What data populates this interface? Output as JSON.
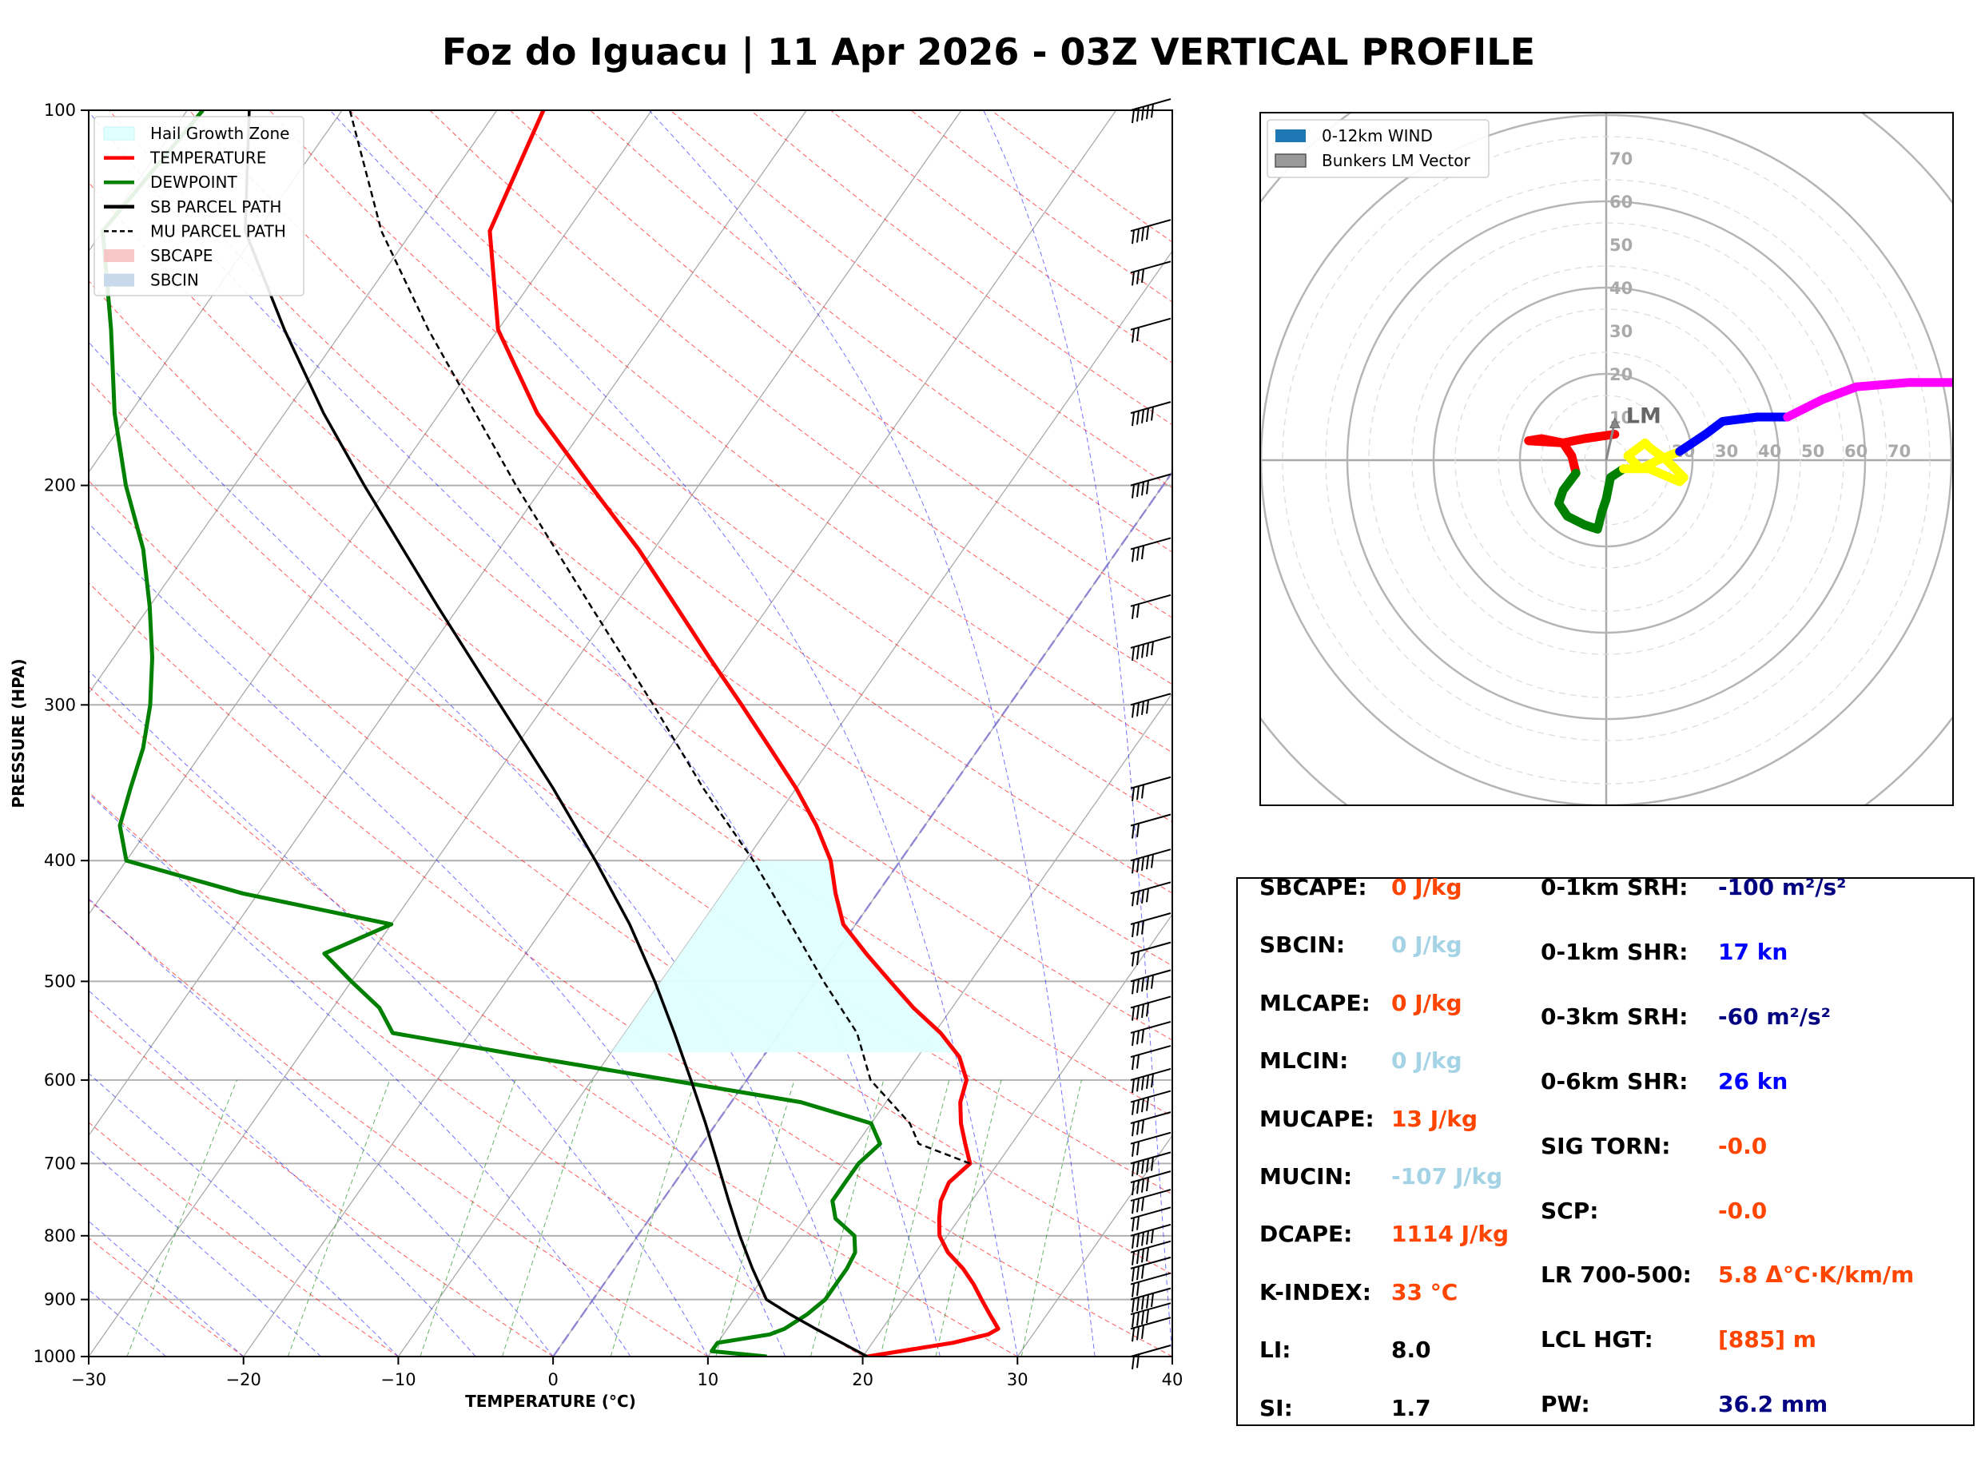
{
  "title": "Foz do Iguacu | 11 Apr 2026 - 03Z VERTICAL PROFILE",
  "colors": {
    "temperature": "#ff0000",
    "dewpoint": "#008000",
    "parcel": "#000000",
    "hail": "#e0ffff",
    "dry_adiabat": "#ff0000",
    "moist_adiabat": "#0000ff",
    "mixing_ratio": "#008000",
    "isotherm": "#000000",
    "value_orange": "#ff4500",
    "value_lightblue": "#a5d3e6",
    "value_navy": "#000080",
    "value_blue": "#0000ff",
    "value_black": "#000000"
  },
  "chart_data": [
    {
      "type": "line",
      "name": "skew-t",
      "xlabel": "TEMPERATURE (°C)",
      "ylabel": "PRESSURE (HPA)",
      "xlim": [
        -30,
        40
      ],
      "ylim": [
        1000,
        100
      ],
      "x_ticks": [
        -30,
        -20,
        -10,
        0,
        10,
        20,
        30,
        40
      ],
      "x_tick_labels": [
        "−30",
        "−20",
        "−10",
        "0",
        "10",
        "20",
        "30",
        "40"
      ],
      "y_ticks": [
        1000,
        900,
        800,
        700,
        600,
        500,
        400,
        300,
        200,
        100
      ],
      "y_tick_labels": [
        "1000",
        "900",
        "800",
        "700",
        "600",
        "500",
        "400",
        "300",
        "200",
        "100"
      ],
      "legend": [
        {
          "label": "Hail Growth Zone",
          "kind": "patch",
          "color": "#e0ffff"
        },
        {
          "label": "TEMPERATURE",
          "kind": "line",
          "color": "#ff0000"
        },
        {
          "label": "DEWPOINT",
          "kind": "line",
          "color": "#008000"
        },
        {
          "label": "SB PARCEL PATH",
          "kind": "line",
          "color": "#000000"
        },
        {
          "label": "MU PARCEL PATH",
          "kind": "dashed",
          "color": "#000000"
        },
        {
          "label": "SBCAPE",
          "kind": "patch",
          "color": "#f7c6c6"
        },
        {
          "label": "SBCIN",
          "kind": "patch",
          "color": "#c7d9ea"
        }
      ],
      "series": [
        {
          "name": "TEMPERATURE",
          "points": [
            [
              1000,
              20.3
            ],
            [
              975,
              25.2
            ],
            [
              960,
              27.1
            ],
            [
              950,
              27.5
            ],
            [
              925,
              26.3
            ],
            [
              900,
              25.1
            ],
            [
              875,
              23.9
            ],
            [
              850,
              22.5
            ],
            [
              825,
              20.8
            ],
            [
              800,
              19.5
            ],
            [
              775,
              18.7
            ],
            [
              750,
              18.0
            ],
            [
              725,
              17.7
            ],
            [
              700,
              18.2
            ],
            [
              675,
              17.0
            ],
            [
              650,
              15.8
            ],
            [
              625,
              14.8
            ],
            [
              600,
              14.2
            ],
            [
              575,
              12.7
            ],
            [
              550,
              10.4
            ],
            [
              525,
              7.5
            ],
            [
              500,
              4.8
            ],
            [
              475,
              2.0
            ],
            [
              450,
              -0.8
            ],
            [
              425,
              -2.7
            ],
            [
              400,
              -4.5
            ],
            [
              375,
              -7.0
            ],
            [
              350,
              -10.0
            ],
            [
              325,
              -13.5
            ],
            [
              300,
              -17.3
            ],
            [
              275,
              -21.5
            ],
            [
              250,
              -26.0
            ],
            [
              225,
              -31.0
            ],
            [
              200,
              -37.0
            ],
            [
              175,
              -43.7
            ],
            [
              150,
              -50.0
            ],
            [
              125,
              -55.0
            ],
            [
              100,
              -57.0
            ]
          ]
        },
        {
          "name": "DEWPOINT",
          "points": [
            [
              1000,
              13.8
            ],
            [
              990,
              10.0
            ],
            [
              975,
              10.0
            ],
            [
              960,
              13.0
            ],
            [
              950,
              13.7
            ],
            [
              925,
              14.5
            ],
            [
              900,
              15.0
            ],
            [
              875,
              15.0
            ],
            [
              850,
              15.0
            ],
            [
              825,
              14.8
            ],
            [
              800,
              14.0
            ],
            [
              775,
              12.0
            ],
            [
              750,
              11.0
            ],
            [
              725,
              11.0
            ],
            [
              700,
              11.0
            ],
            [
              675,
              11.5
            ],
            [
              650,
              10.0
            ],
            [
              625,
              4.5
            ],
            [
              600,
              -5.0
            ],
            [
              575,
              -15.0
            ],
            [
              550,
              -25.0
            ],
            [
              525,
              -27.0
            ],
            [
              500,
              -30.0
            ],
            [
              475,
              -33.0
            ],
            [
              450,
              -30.0
            ],
            [
              425,
              -41.0
            ],
            [
              400,
              -50.0
            ],
            [
              375,
              -52.0
            ],
            [
              350,
              -53.0
            ],
            [
              325,
              -54.0
            ],
            [
              300,
              -55.5
            ],
            [
              275,
              -57.5
            ],
            [
              250,
              -60.0
            ],
            [
              225,
              -63.0
            ],
            [
              200,
              -67.0
            ],
            [
              175,
              -71.0
            ],
            [
              150,
              -75.0
            ],
            [
              125,
              -80.0
            ],
            [
              100,
              -79.0
            ]
          ]
        },
        {
          "name": "SB PARCEL PATH",
          "points": [
            [
              1000,
              20.3
            ],
            [
              950,
              15.7
            ],
            [
              925,
              13.4
            ],
            [
              900,
              11.2
            ],
            [
              850,
              8.9
            ],
            [
              800,
              6.6
            ],
            [
              750,
              4.3
            ],
            [
              700,
              1.9
            ],
            [
              650,
              -0.7
            ],
            [
              600,
              -3.6
            ],
            [
              550,
              -6.8
            ],
            [
              500,
              -10.4
            ],
            [
              450,
              -14.6
            ],
            [
              400,
              -19.7
            ],
            [
              350,
              -25.7
            ],
            [
              300,
              -32.9
            ],
            [
              250,
              -41.4
            ],
            [
              200,
              -51.6
            ],
            [
              175,
              -57.5
            ],
            [
              150,
              -63.8
            ],
            [
              125,
              -70.8
            ],
            [
              100,
              -76.0
            ]
          ]
        },
        {
          "name": "MU PARCEL PATH",
          "points": [
            [
              700,
              18.2
            ],
            [
              675,
              14.0
            ],
            [
              650,
              12.5
            ],
            [
              600,
              8.0
            ],
            [
              550,
              5.0
            ],
            [
              500,
              0.5
            ],
            [
              450,
              -4.2
            ],
            [
              400,
              -9.5
            ],
            [
              350,
              -16.0
            ],
            [
              300,
              -23.0
            ],
            [
              250,
              -31.5
            ],
            [
              200,
              -41.8
            ],
            [
              150,
              -54.5
            ],
            [
              125,
              -62.0
            ],
            [
              100,
              -69.5
            ]
          ]
        }
      ],
      "hail_growth_zone": {
        "top_pressure": 400,
        "bottom_pressure": 570,
        "temp_top": -30,
        "temp_bottom": -10
      },
      "wind_barb_pressures": [
        1000,
        950,
        925,
        900,
        875,
        850,
        825,
        800,
        775,
        750,
        725,
        700,
        675,
        650,
        625,
        600,
        575,
        550,
        525,
        500,
        475,
        450,
        425,
        400,
        375,
        350,
        300,
        270,
        250,
        225,
        200,
        175,
        150,
        135,
        125,
        100
      ]
    },
    {
      "type": "scatter",
      "name": "hodograph",
      "legend": [
        {
          "label": "0-12km WIND",
          "color": "#1f77b4"
        },
        {
          "label": "Bunkers LM Vector",
          "color": "#999999"
        }
      ],
      "rings": [
        10,
        20,
        30,
        40,
        50,
        60,
        70
      ],
      "ring_labels": [
        "10",
        "20",
        "30",
        "40",
        "50",
        "60",
        "70"
      ],
      "axis_labels": [
        "20",
        "30",
        "40",
        "50",
        "60",
        "70"
      ],
      "lm_label": "LM",
      "lm_vector": [
        2,
        9
      ],
      "segments": [
        {
          "color": "#ff0000",
          "points": [
            [
              2,
              6
            ],
            [
              -5,
              5
            ],
            [
              -10,
              4
            ],
            [
              -15,
              5
            ],
            [
              -18,
              4.5
            ],
            [
              -10,
              4
            ],
            [
              -8,
              1
            ],
            [
              -7,
              -3
            ]
          ]
        },
        {
          "color": "#008000",
          "points": [
            [
              -7,
              -3
            ],
            [
              -10,
              -7
            ],
            [
              -11,
              -10
            ],
            [
              -9,
              -13
            ],
            [
              -5,
              -15
            ],
            [
              -2,
              -16
            ],
            [
              -1,
              -12
            ],
            [
              0,
              -9
            ],
            [
              1,
              -4
            ],
            [
              4,
              -2
            ]
          ]
        },
        {
          "color": "#ffff00",
          "points": [
            [
              4,
              -2
            ],
            [
              10,
              -2
            ],
            [
              17,
              -5
            ],
            [
              18,
              -4
            ],
            [
              14,
              0
            ],
            [
              10,
              3
            ],
            [
              9,
              4
            ],
            [
              5,
              1
            ],
            [
              8,
              -2
            ],
            [
              12,
              0
            ],
            [
              17,
              2
            ]
          ]
        },
        {
          "color": "#0000ff",
          "points": [
            [
              17,
              2
            ],
            [
              23,
              6
            ],
            [
              27,
              9
            ],
            [
              35,
              10
            ],
            [
              42,
              10
            ]
          ]
        },
        {
          "color": "#ff00ff",
          "points": [
            [
              42,
              10
            ],
            [
              50,
              14
            ],
            [
              58,
              17
            ],
            [
              70,
              18
            ],
            [
              82,
              18
            ]
          ]
        }
      ]
    }
  ],
  "stats": {
    "left": [
      {
        "label": "SBCAPE:",
        "value": "0 J/kg",
        "color": "#ff4500"
      },
      {
        "label": "SBCIN:",
        "value": "0 J/kg",
        "color": "#a5d3e6"
      },
      {
        "label": "MLCAPE:",
        "value": "0 J/kg",
        "color": "#ff4500"
      },
      {
        "label": "MLCIN:",
        "value": "0 J/kg",
        "color": "#a5d3e6"
      },
      {
        "label": "MUCAPE:",
        "value": "13 J/kg",
        "color": "#ff4500"
      },
      {
        "label": "MUCIN:",
        "value": "-107 J/kg",
        "color": "#a5d3e6"
      },
      {
        "label": "DCAPE:",
        "value": "1114 J/kg",
        "color": "#ff4500"
      },
      {
        "label": "K-INDEX:",
        "value": "33 °C",
        "color": "#ff4500"
      },
      {
        "label": "LI:",
        "value": "8.0",
        "color": "#000000"
      },
      {
        "label": "SI:",
        "value": "1.7",
        "color": "#000000"
      }
    ],
    "right": [
      {
        "label": "0-1km SRH:",
        "value": "-100 m²/s²",
        "color": "#000080"
      },
      {
        "label": "0-1km SHR:",
        "value": "17 kn",
        "color": "#0000ff"
      },
      {
        "label": "0-3km SRH:",
        "value": "-60 m²/s²",
        "color": "#000080"
      },
      {
        "label": "0-6km SHR:",
        "value": "26 kn",
        "color": "#0000ff"
      },
      {
        "label": "SIG TORN:",
        "value": "-0.0",
        "color": "#ff4500"
      },
      {
        "label": "SCP:",
        "value": "-0.0",
        "color": "#ff4500"
      },
      {
        "label": "LR 700-500:",
        "value": "5.8 Δ°C·K/km/m",
        "color": "#ff4500"
      },
      {
        "label": "LCL HGT:",
        "value": "[885] m",
        "color": "#ff4500"
      },
      {
        "label": "PW:",
        "value": "36.2 mm",
        "color": "#000080"
      }
    ]
  }
}
